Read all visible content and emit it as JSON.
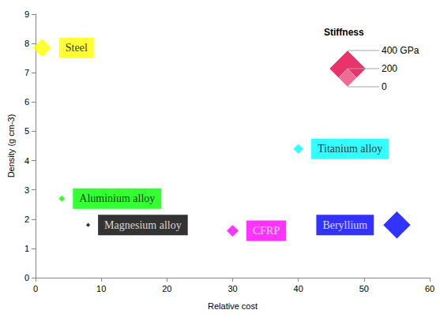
{
  "chart_data": {
    "type": "scatter",
    "marker": "diamond",
    "x_label": "Relative cost",
    "y_label": "Density (g cm-3)",
    "xlim": [
      0,
      60
    ],
    "xticks": [
      0,
      10,
      20,
      30,
      40,
      50,
      60
    ],
    "ylim": [
      0,
      9
    ],
    "yticks": [
      0,
      1,
      2,
      3,
      4,
      5,
      6,
      7,
      8,
      9
    ],
    "grid": false,
    "labels": [
      "Steel",
      "Aluminium alloy",
      "Magnesium alloy",
      "CFRP",
      "Titanium alloy",
      "Beryllium"
    ],
    "x": [
      1,
      4,
      8,
      30,
      40,
      55
    ],
    "values": [
      7.85,
      2.7,
      1.8,
      1.6,
      4.4,
      1.8
    ],
    "sizes": [
      200,
      70,
      45,
      130,
      110,
      300
    ],
    "colors": [
      "#ffff00",
      "#00ff00",
      "#000000",
      "#ff00ff",
      "#00ffff",
      "#0000ff"
    ],
    "size_legend": {
      "title": "Stiffness",
      "values": [
        400,
        200,
        0
      ],
      "labels": [
        "400 GPa",
        "200",
        "0"
      ]
    }
  }
}
